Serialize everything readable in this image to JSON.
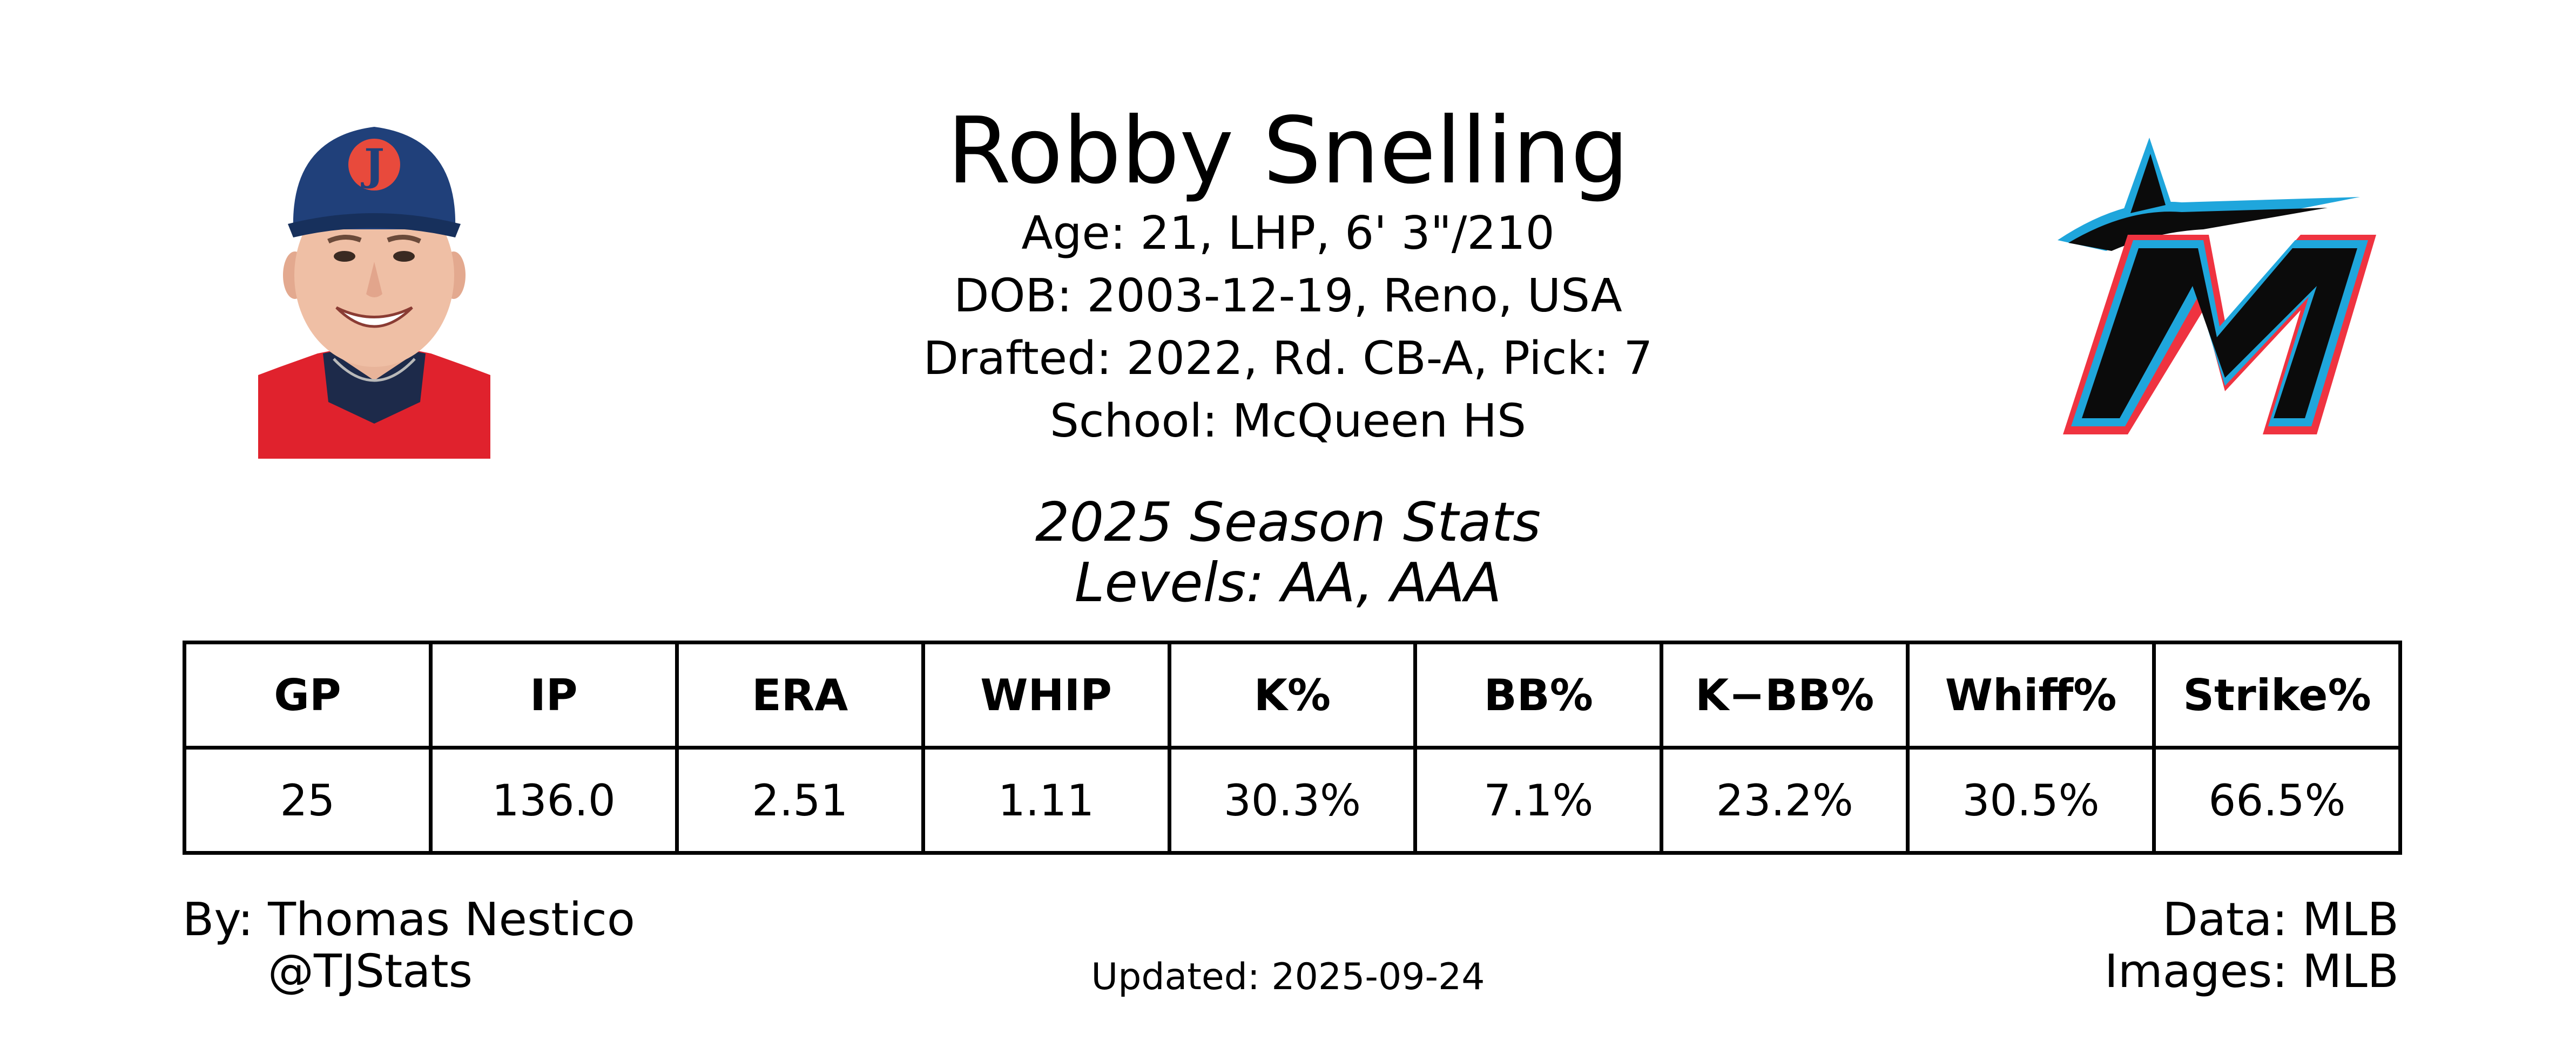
{
  "player": {
    "name": "Robby Snelling",
    "age_line": "Age: 21, LHP, 6' 3\"/210",
    "dob_line": "DOB: 2003-12-19, Reno, USA",
    "drafted_line": "Drafted: 2022, Rd. CB-A, Pick: 7",
    "school_line": "School: McQueen HS"
  },
  "season": {
    "title": "2025 Season Stats",
    "levels": "Levels: AA, AAA"
  },
  "images": {
    "headshot": "player-headshot",
    "logo": "miami-marlins-logo",
    "headshot_cap_color": "#20407a",
    "headshot_jersey_color": "#e0222d",
    "logo_black": "#0b0b0b",
    "logo_blue": "#1fa6dc",
    "logo_red": "#ef3340"
  },
  "table": {
    "headers": [
      "GP",
      "IP",
      "ERA",
      "WHIP",
      "K%",
      "BB%",
      "K−BB%",
      "Whiff%",
      "Strike%"
    ],
    "values": [
      "25",
      "136.0",
      "2.51",
      "1.11",
      "30.3%",
      "7.1%",
      "23.2%",
      "30.5%",
      "66.5%"
    ]
  },
  "footer": {
    "by": "By: Thomas Nestico",
    "handle": "@TJStats",
    "updated": "Updated: 2025-09-24",
    "data_source": "Data: MLB",
    "images_source": "Images: MLB"
  }
}
